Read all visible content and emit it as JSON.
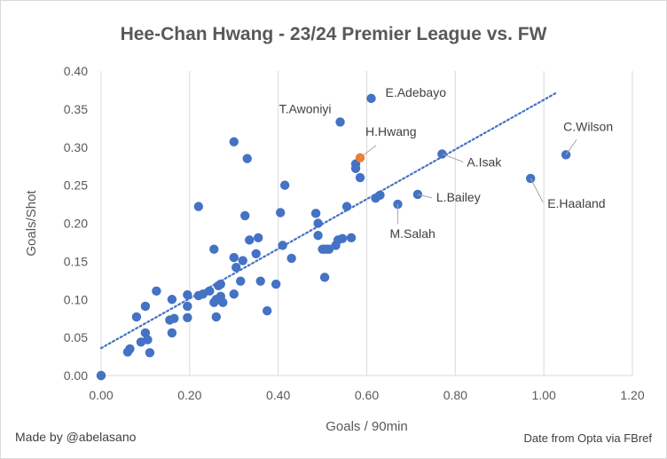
{
  "chart_data": {
    "type": "scatter",
    "title": "Hee-Chan Hwang - 23/24 Premier League vs. FW",
    "xlabel": "Goals / 90min",
    "ylabel": "Goals/Shot",
    "xlim": [
      0,
      1.2
    ],
    "ylim": [
      0,
      0.4
    ],
    "x_ticks": [
      "0.00",
      "0.20",
      "0.40",
      "0.60",
      "0.80",
      "1.00",
      "1.20"
    ],
    "y_ticks": [
      "0.00",
      "0.05",
      "0.10",
      "0.15",
      "0.20",
      "0.25",
      "0.30",
      "0.35",
      "0.40"
    ],
    "grid": "vertical",
    "colors": {
      "points": "#4472c4",
      "highlight": "#ed7d31",
      "trend": "#4472c4",
      "grid": "#d9d9d9"
    },
    "trendline": {
      "style": "dotted",
      "x": [
        0,
        1.03
      ],
      "y": [
        0.036,
        0.372
      ]
    },
    "points": [
      {
        "x": 0.0,
        "y": 0.0
      },
      {
        "x": 0.0,
        "y": 0.0
      },
      {
        "x": 0.06,
        "y": 0.031
      },
      {
        "x": 0.065,
        "y": 0.035
      },
      {
        "x": 0.09,
        "y": 0.044
      },
      {
        "x": 0.1,
        "y": 0.056
      },
      {
        "x": 0.105,
        "y": 0.047
      },
      {
        "x": 0.11,
        "y": 0.03
      },
      {
        "x": 0.08,
        "y": 0.077
      },
      {
        "x": 0.1,
        "y": 0.091
      },
      {
        "x": 0.125,
        "y": 0.111
      },
      {
        "x": 0.155,
        "y": 0.073
      },
      {
        "x": 0.16,
        "y": 0.056
      },
      {
        "x": 0.16,
        "y": 0.1
      },
      {
        "x": 0.165,
        "y": 0.075
      },
      {
        "x": 0.195,
        "y": 0.076
      },
      {
        "x": 0.195,
        "y": 0.091
      },
      {
        "x": 0.195,
        "y": 0.106
      },
      {
        "x": 0.22,
        "y": 0.105
      },
      {
        "x": 0.23,
        "y": 0.107
      },
      {
        "x": 0.245,
        "y": 0.111
      },
      {
        "x": 0.255,
        "y": 0.096
      },
      {
        "x": 0.26,
        "y": 0.077
      },
      {
        "x": 0.26,
        "y": 0.1
      },
      {
        "x": 0.265,
        "y": 0.118
      },
      {
        "x": 0.27,
        "y": 0.12
      },
      {
        "x": 0.27,
        "y": 0.104
      },
      {
        "x": 0.275,
        "y": 0.096
      },
      {
        "x": 0.3,
        "y": 0.107
      },
      {
        "x": 0.3,
        "y": 0.155
      },
      {
        "x": 0.305,
        "y": 0.142
      },
      {
        "x": 0.315,
        "y": 0.124
      },
      {
        "x": 0.32,
        "y": 0.151
      },
      {
        "x": 0.255,
        "y": 0.166
      },
      {
        "x": 0.22,
        "y": 0.222
      },
      {
        "x": 0.335,
        "y": 0.178
      },
      {
        "x": 0.35,
        "y": 0.16
      },
      {
        "x": 0.355,
        "y": 0.181
      },
      {
        "x": 0.36,
        "y": 0.124
      },
      {
        "x": 0.375,
        "y": 0.085
      },
      {
        "x": 0.395,
        "y": 0.12
      },
      {
        "x": 0.41,
        "y": 0.171
      },
      {
        "x": 0.43,
        "y": 0.154
      },
      {
        "x": 0.325,
        "y": 0.21
      },
      {
        "x": 0.405,
        "y": 0.214
      },
      {
        "x": 0.415,
        "y": 0.25
      },
      {
        "x": 0.33,
        "y": 0.285
      },
      {
        "x": 0.3,
        "y": 0.307
      },
      {
        "x": 0.485,
        "y": 0.213
      },
      {
        "x": 0.49,
        "y": 0.2
      },
      {
        "x": 0.49,
        "y": 0.184
      },
      {
        "x": 0.5,
        "y": 0.166
      },
      {
        "x": 0.505,
        "y": 0.166
      },
      {
        "x": 0.51,
        "y": 0.166
      },
      {
        "x": 0.515,
        "y": 0.166
      },
      {
        "x": 0.53,
        "y": 0.171
      },
      {
        "x": 0.535,
        "y": 0.178
      },
      {
        "x": 0.545,
        "y": 0.18
      },
      {
        "x": 0.565,
        "y": 0.181
      },
      {
        "x": 0.505,
        "y": 0.129
      },
      {
        "x": 0.555,
        "y": 0.222
      },
      {
        "x": 0.575,
        "y": 0.278
      },
      {
        "x": 0.575,
        "y": 0.272
      },
      {
        "x": 0.585,
        "y": 0.26
      },
      {
        "x": 0.62,
        "y": 0.233
      },
      {
        "x": 0.63,
        "y": 0.237
      },
      {
        "x": 0.54,
        "y": 0.333,
        "label": "T.Awoniyi"
      },
      {
        "x": 0.61,
        "y": 0.364,
        "label": "E.Adebayo"
      },
      {
        "x": 0.585,
        "y": 0.286,
        "label": "H.Hwang",
        "highlight": true
      },
      {
        "x": 0.67,
        "y": 0.225,
        "label": "M.Salah"
      },
      {
        "x": 0.715,
        "y": 0.238,
        "label": "L.Bailey"
      },
      {
        "x": 0.77,
        "y": 0.291,
        "label": "A.Isak"
      },
      {
        "x": 0.97,
        "y": 0.259,
        "label": "E.Haaland"
      },
      {
        "x": 1.05,
        "y": 0.29,
        "label": "C.Wilson"
      }
    ]
  },
  "credits": {
    "left": "Made by @abelasano",
    "right": "Date from Opta via FBref"
  }
}
